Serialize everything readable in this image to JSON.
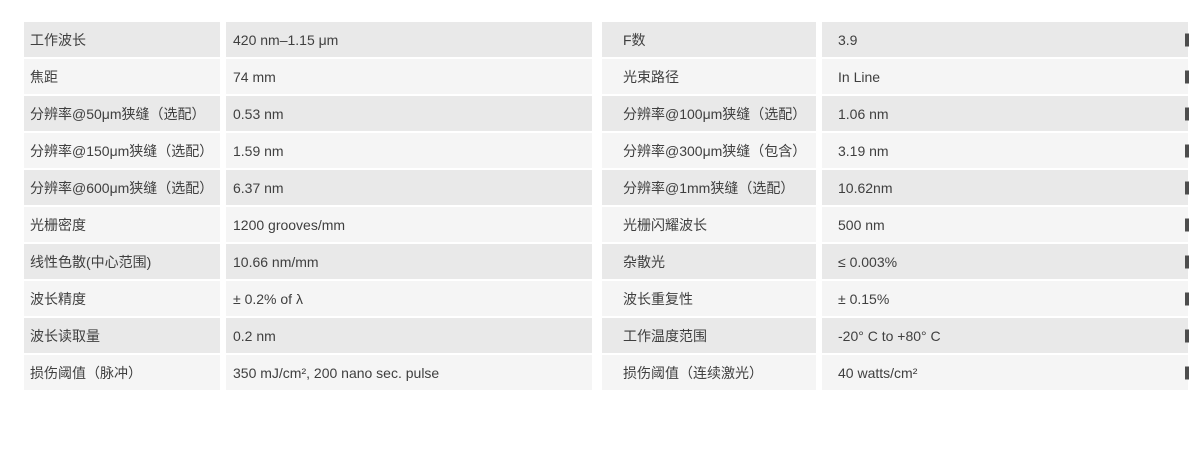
{
  "colors": {
    "page_bg": "#ffffff",
    "row_odd_bg": "#e9e9e9",
    "row_even_bg": "#f5f5f5",
    "divider": "#ffffff",
    "text": "#3f3f3f"
  },
  "left_table": {
    "rows": [
      {
        "label": "工作波长",
        "value": "420 nm–1.15 μm"
      },
      {
        "label": "焦距",
        "value": "74 mm"
      },
      {
        "label": "分辨率@50μm狭缝（选配）",
        "value": "0.53 nm"
      },
      {
        "label": "分辨率@150μm狭缝（选配）",
        "value": "1.59 nm"
      },
      {
        "label": "分辨率@600μm狭缝（选配）",
        "value": "6.37 nm"
      },
      {
        "label": "光栅密度",
        "value": "1200 grooves/mm"
      },
      {
        "label": "线性色散(中心范围)",
        "value": "10.66 nm/mm"
      },
      {
        "label": "波长精度",
        "value": "± 0.2% of λ"
      },
      {
        "label": "波长读取量",
        "value": "0.2 nm"
      },
      {
        "label": "损伤阈值（脉冲）",
        "value": "350 mJ/cm², 200 nano sec. pulse"
      }
    ]
  },
  "right_table": {
    "rows": [
      {
        "label": "F数",
        "value": "3.9"
      },
      {
        "label": "光束路径",
        "value": "In Line"
      },
      {
        "label": "分辨率@100μm狭缝（选配）",
        "value": "1.06 nm"
      },
      {
        "label": "分辨率@300μm狭缝（包含）",
        "value": "3.19 nm"
      },
      {
        "label": "分辨率@1mm狭缝（选配）",
        "value": "10.62nm"
      },
      {
        "label": "光栅闪耀波长",
        "value": "500 nm"
      },
      {
        "label": "杂散光",
        "value": "≤ 0.003%"
      },
      {
        "label": "波长重复性",
        "value": "± 0.15%"
      },
      {
        "label": "工作温度范围",
        "value": "-20° C to +80° C"
      },
      {
        "label": "损伤阈值（连续激光）",
        "value": "40 watts/cm²"
      }
    ]
  }
}
